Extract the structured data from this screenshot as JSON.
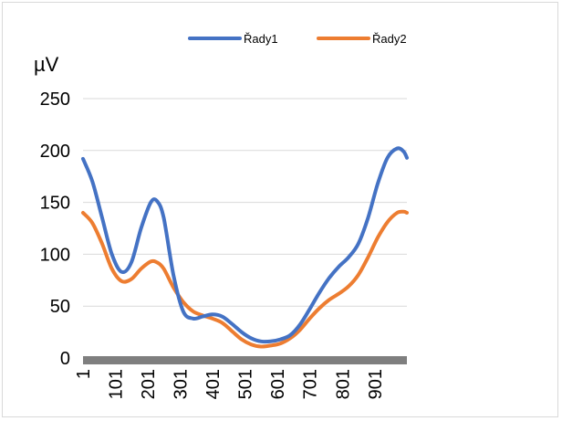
{
  "chart_data": {
    "type": "line",
    "ylabel": "µV",
    "ylim": [
      0,
      250
    ],
    "yticks": [
      0,
      50,
      100,
      150,
      200,
      250
    ],
    "xlim": [
      1,
      1000
    ],
    "xticks": [
      "1",
      "101",
      "201",
      "301",
      "401",
      "501",
      "601",
      "701",
      "801",
      "901"
    ],
    "grid": true,
    "legend_position": "top",
    "series": [
      {
        "name": "Řady1",
        "color": "#4472C4",
        "x": [
          1,
          30,
          60,
          90,
          120,
          150,
          180,
          210,
          230,
          250,
          280,
          310,
          340,
          370,
          400,
          430,
          460,
          490,
          520,
          550,
          580,
          610,
          640,
          670,
          700,
          730,
          760,
          790,
          820,
          850,
          880,
          910,
          940,
          970,
          990,
          1000
        ],
        "y": [
          192,
          170,
          135,
          100,
          83,
          92,
          125,
          150,
          151,
          135,
          80,
          45,
          38,
          40,
          42,
          40,
          33,
          25,
          19,
          16,
          16,
          18,
          22,
          32,
          47,
          63,
          77,
          88,
          97,
          110,
          135,
          168,
          193,
          202,
          199,
          193
        ]
      },
      {
        "name": "Řady2",
        "color": "#ED7D31",
        "x": [
          1,
          30,
          60,
          90,
          120,
          150,
          180,
          210,
          230,
          250,
          280,
          310,
          340,
          370,
          400,
          430,
          460,
          490,
          520,
          550,
          580,
          610,
          640,
          670,
          700,
          730,
          760,
          790,
          820,
          850,
          880,
          910,
          940,
          970,
          990,
          1000
        ],
        "y": [
          140,
          130,
          110,
          86,
          74,
          76,
          86,
          93,
          92,
          86,
          68,
          54,
          45,
          41,
          38,
          34,
          26,
          18,
          13,
          11,
          12,
          14,
          19,
          27,
          38,
          48,
          56,
          62,
          69,
          80,
          97,
          116,
          131,
          140,
          141,
          140
        ]
      }
    ]
  }
}
